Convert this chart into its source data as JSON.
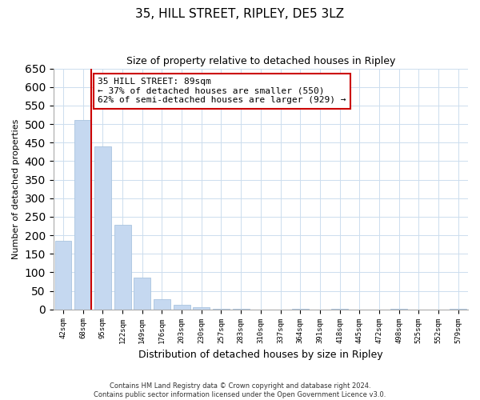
{
  "title": "35, HILL STREET, RIPLEY, DE5 3LZ",
  "subtitle": "Size of property relative to detached houses in Ripley",
  "xlabel": "Distribution of detached houses by size in Ripley",
  "ylabel": "Number of detached properties",
  "bar_labels": [
    "42sqm",
    "68sqm",
    "95sqm",
    "122sqm",
    "149sqm",
    "176sqm",
    "203sqm",
    "230sqm",
    "257sqm",
    "283sqm",
    "310sqm",
    "337sqm",
    "364sqm",
    "391sqm",
    "418sqm",
    "445sqm",
    "472sqm",
    "498sqm",
    "525sqm",
    "552sqm",
    "579sqm"
  ],
  "bar_values": [
    185,
    510,
    440,
    228,
    85,
    28,
    13,
    5,
    2,
    1,
    0,
    0,
    2,
    0,
    1,
    0,
    0,
    1,
    0,
    0,
    2
  ],
  "bar_color": "#c5d8f0",
  "bar_edge_color": "#aac4e0",
  "annotation_title": "35 HILL STREET: 89sqm",
  "annotation_line1": "← 37% of detached houses are smaller (550)",
  "annotation_line2": "62% of semi-detached houses are larger (929) →",
  "annotation_box_color": "#ffffff",
  "annotation_box_edge": "#cc0000",
  "red_line_color": "#cc0000",
  "ylim": [
    0,
    650
  ],
  "yticks": [
    0,
    50,
    100,
    150,
    200,
    250,
    300,
    350,
    400,
    450,
    500,
    550,
    600,
    650
  ],
  "footer1": "Contains HM Land Registry data © Crown copyright and database right 2024.",
  "footer2": "Contains public sector information licensed under the Open Government Licence v3.0."
}
